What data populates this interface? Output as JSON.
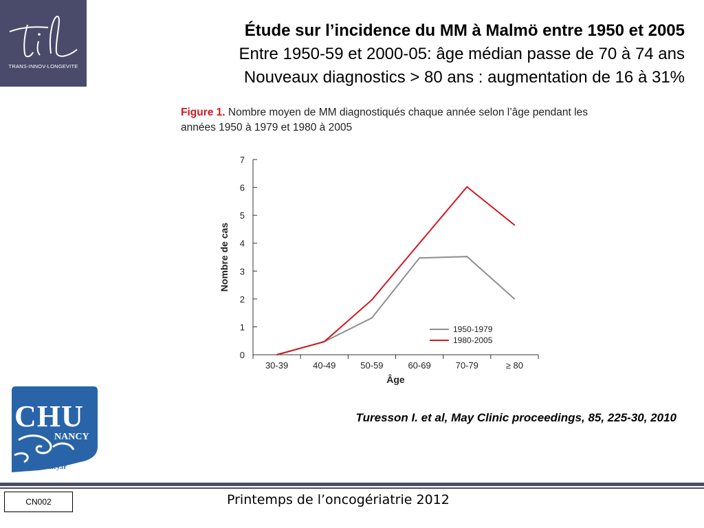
{
  "header": {
    "logo_caption": "TRANS-INNOV-LONGEVITE",
    "title": "Étude sur l’incidence du MM à Malmö entre 1950 et 2005",
    "subtitle1": "Entre 1950-59 et 2000-05: âge médian passe de 70 à 74 ans",
    "subtitle2": "Nouveaux diagnostics > 80 ans : augmentation de 16 à 31%"
  },
  "figure": {
    "label": "Figure 1.",
    "caption": " Nombre moyen de MM diagnostiqués chaque année selon l’âge pendant les années 1950 à 1979 et 1980 à 2005"
  },
  "chart_data": {
    "type": "line",
    "title": "",
    "xlabel": "Âge",
    "ylabel": "Nombre de cas",
    "categories": [
      "30-39",
      "40-49",
      "50-59",
      "60-69",
      "70-79",
      "≥ 80"
    ],
    "ylim": [
      0,
      7
    ],
    "yticks": [
      0,
      1,
      2,
      3,
      4,
      5,
      6,
      7
    ],
    "legend_position": "bottom-right",
    "grid": false,
    "series": [
      {
        "name": "1950-1979",
        "color": "#8f8f8f",
        "values": [
          0,
          0.47,
          1.32,
          3.47,
          3.52,
          2.0
        ]
      },
      {
        "name": "1980-2005",
        "color": "#d0181e",
        "values": [
          0,
          0.47,
          1.97,
          4.0,
          6.02,
          4.65
        ]
      }
    ]
  },
  "reference": "Turesson I. et al, May Clinic proceedings, 85, 225-30, 2010",
  "footer": {
    "code": "CN002",
    "text": "Printemps de l’oncogériatrie 2012"
  },
  "chu_logo": {
    "name": "CHU",
    "city": "NANCY",
    "url": "www.chu-nancy.fr",
    "color": "#2a64a8"
  },
  "colors": {
    "brand_bar": "#4a4b6a",
    "figure_label": "#d0181e"
  }
}
